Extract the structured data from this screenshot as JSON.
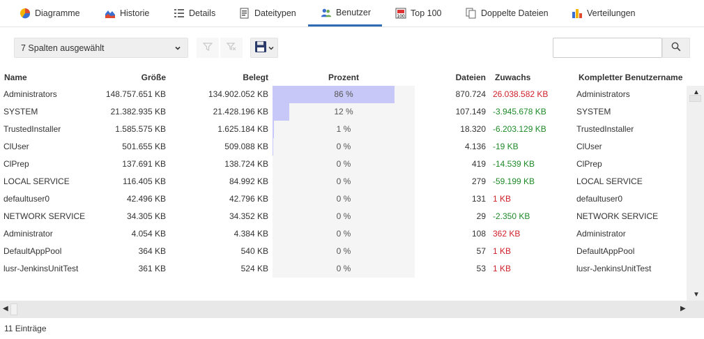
{
  "tabs": [
    {
      "label": "Diagramme",
      "icon": "pie-chart-icon"
    },
    {
      "label": "Historie",
      "icon": "area-chart-icon"
    },
    {
      "label": "Details",
      "icon": "details-list-icon"
    },
    {
      "label": "Dateitypen",
      "icon": "file-types-icon"
    },
    {
      "label": "Benutzer",
      "icon": "users-icon"
    },
    {
      "label": "Top 100",
      "icon": "top100-icon"
    },
    {
      "label": "Doppelte Dateien",
      "icon": "duplicate-files-icon"
    },
    {
      "label": "Verteilungen",
      "icon": "bar-chart-icon"
    }
  ],
  "active_tab": "Benutzer",
  "toolbar": {
    "column_select": "7 Spalten ausgewählt",
    "search_value": "",
    "search_placeholder": ""
  },
  "columns": [
    "Name",
    "Größe",
    "Belegt",
    "Prozent",
    "Dateien",
    "Zuwachs",
    "Kompletter Benutzername"
  ],
  "rows": [
    {
      "name": "Administrators",
      "size": "148.757.651 KB",
      "used": "134.902.052 KB",
      "percent_label": "86 %",
      "percent": 0.86,
      "files": "870.724",
      "growth": "26.038.582 KB",
      "growth_sign": "pos",
      "fullname": "Administrators"
    },
    {
      "name": "SYSTEM",
      "size": "21.382.935 KB",
      "used": "21.428.196 KB",
      "percent_label": "12 %",
      "percent": 0.12,
      "files": "107.149",
      "growth": "-3.945.678 KB",
      "growth_sign": "neg",
      "fullname": "SYSTEM"
    },
    {
      "name": "TrustedInstaller",
      "size": "1.585.575 KB",
      "used": "1.625.184 KB",
      "percent_label": "1 %",
      "percent": 0.01,
      "files": "18.320",
      "growth": "-6.203.129 KB",
      "growth_sign": "neg",
      "fullname": "TrustedInstaller"
    },
    {
      "name": "ClUser",
      "size": "501.655 KB",
      "used": "509.088 KB",
      "percent_label": "0 %",
      "percent": 0.003,
      "files": "4.136",
      "growth": "-19 KB",
      "growth_sign": "neg",
      "fullname": "ClUser"
    },
    {
      "name": "ClPrep",
      "size": "137.691 KB",
      "used": "138.724 KB",
      "percent_label": "0 %",
      "percent": 0,
      "files": "419",
      "growth": "-14.539 KB",
      "growth_sign": "neg",
      "fullname": "ClPrep"
    },
    {
      "name": "LOCAL SERVICE",
      "size": "116.405 KB",
      "used": "84.992 KB",
      "percent_label": "0 %",
      "percent": 0,
      "files": "279",
      "growth": "-59.199 KB",
      "growth_sign": "neg",
      "fullname": "LOCAL SERVICE"
    },
    {
      "name": "defaultuser0",
      "size": "42.496 KB",
      "used": "42.796 KB",
      "percent_label": "0 %",
      "percent": 0,
      "files": "131",
      "growth": "1 KB",
      "growth_sign": "pos",
      "fullname": "defaultuser0"
    },
    {
      "name": "NETWORK SERVICE",
      "size": "34.305 KB",
      "used": "34.352 KB",
      "percent_label": "0 %",
      "percent": 0,
      "files": "29",
      "growth": "-2.350 KB",
      "growth_sign": "neg",
      "fullname": "NETWORK SERVICE"
    },
    {
      "name": "Administrator",
      "size": "4.054 KB",
      "used": "4.384 KB",
      "percent_label": "0 %",
      "percent": 0,
      "files": "108",
      "growth": "362 KB",
      "growth_sign": "pos",
      "fullname": "Administrator"
    },
    {
      "name": "DefaultAppPool",
      "size": "364 KB",
      "used": "540 KB",
      "percent_label": "0 %",
      "percent": 0,
      "files": "57",
      "growth": "1 KB",
      "growth_sign": "pos",
      "fullname": "DefaultAppPool"
    },
    {
      "name": "lusr-JenkinsUnitTest",
      "size": "361 KB",
      "used": "524 KB",
      "percent_label": "0 %",
      "percent": 0,
      "files": "53",
      "growth": "1 KB",
      "growth_sign": "pos",
      "fullname": "lusr-JenkinsUnitTest"
    }
  ],
  "footer": {
    "entries": "11 Einträge"
  },
  "colors": {
    "accent": "#2f6cb5",
    "bar": "#c8c8f8",
    "positive": "#d0202a",
    "negative": "#1f8a2a"
  }
}
